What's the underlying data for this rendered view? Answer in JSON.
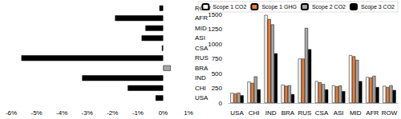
{
  "chart_data": [
    {
      "type": "bar",
      "orientation": "horizontal",
      "grid": false,
      "categories": [
        "USA",
        "CHI",
        "IND",
        "BRA",
        "RUS",
        "CSA",
        "ASI",
        "MID",
        "AFR",
        "ROW"
      ],
      "values": [
        -0.3,
        -1.4,
        -3.2,
        0.3,
        -5.6,
        -0.05,
        -0.85,
        -0.7,
        -1.9,
        -0.15
      ],
      "colors": [
        "#000000",
        "#000000",
        "#000000",
        "#a6a6a6",
        "#000000",
        "#000000",
        "#000000",
        "#000000",
        "#000000",
        "#000000"
      ],
      "xlim": [
        -6,
        1
      ],
      "xticks": [
        {
          "value": -6,
          "label": "-6%"
        },
        {
          "value": -5,
          "label": "-5%"
        },
        {
          "value": -4,
          "label": "-4%"
        },
        {
          "value": -3,
          "label": "-3%"
        },
        {
          "value": -2,
          "label": "-2%"
        },
        {
          "value": -1,
          "label": "-1%"
        },
        {
          "value": 0,
          "label": "0%"
        },
        {
          "value": 1,
          "label": "1%"
        }
      ]
    },
    {
      "type": "bar",
      "grid": false,
      "legend": "top",
      "categories": [
        "USA",
        "CHI",
        "IND",
        "BRA",
        "RUS",
        "CSA",
        "ASI",
        "MID",
        "AFR",
        "ROW"
      ],
      "series": [
        {
          "name": "Scope 1 CO2",
          "color": "#f2f2f2",
          "values": [
            170,
            360,
            1490,
            310,
            750,
            370,
            300,
            810,
            440,
            290
          ]
        },
        {
          "name": "Scope 1 GHG",
          "color": "#ed7d31",
          "values": [
            160,
            340,
            1420,
            290,
            750,
            350,
            280,
            790,
            430,
            270
          ]
        },
        {
          "name": "Scope 2 CO2",
          "color": "#a5a5a5",
          "values": [
            175,
            450,
            1330,
            300,
            1270,
            320,
            295,
            730,
            460,
            300
          ]
        },
        {
          "name": "Scope 3 CO2",
          "color": "#000000",
          "values": [
            130,
            230,
            840,
            150,
            910,
            230,
            200,
            370,
            270,
            220
          ]
        }
      ],
      "ylim": [
        0,
        1500
      ],
      "yticks": [
        0,
        250,
        500,
        750,
        1000,
        1250,
        1500
      ]
    }
  ]
}
